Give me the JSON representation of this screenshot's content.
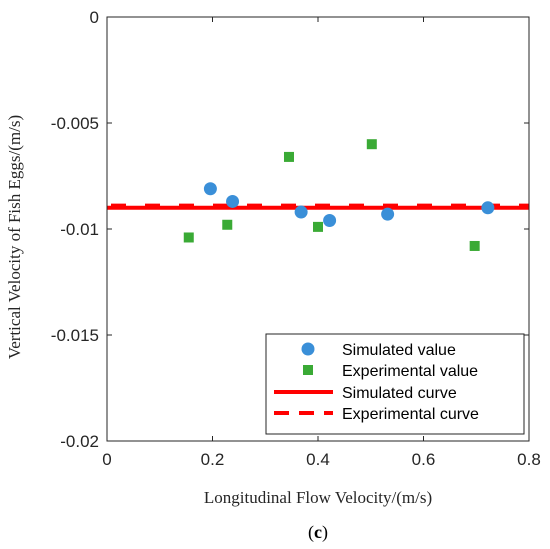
{
  "chart_data": {
    "type": "scatter",
    "xlabel": "Longitudinal Flow Velocity/(m/s)",
    "ylabel": "Vertical Velocity of Fish Eggs/(m/s)",
    "xlim": [
      0,
      0.8
    ],
    "ylim": [
      -0.02,
      0
    ],
    "xticks": [
      "0",
      "0.2",
      "0.4",
      "0.6",
      "0.8"
    ],
    "xtick_values": [
      0,
      0.2,
      0.4,
      0.6,
      0.8
    ],
    "yticks": [
      "0",
      "-0.005",
      "-0.01",
      "-0.015",
      "-0.02"
    ],
    "ytick_values": [
      0,
      -0.005,
      -0.01,
      -0.015,
      -0.02
    ],
    "grid": false,
    "legend_position": "bottom-right",
    "series": [
      {
        "name": "Simulated value",
        "kind": "scatter",
        "marker": "circle",
        "color": "#3a8fd8",
        "x": [
          0.196,
          0.238,
          0.368,
          0.422,
          0.532,
          0.722
        ],
        "y": [
          -0.0081,
          -0.0087,
          -0.0092,
          -0.0096,
          -0.0093,
          -0.009
        ]
      },
      {
        "name": "Experimental value",
        "kind": "scatter",
        "marker": "square",
        "color": "#3aaa35",
        "x": [
          0.155,
          0.228,
          0.345,
          0.4,
          0.502,
          0.697
        ],
        "y": [
          -0.0104,
          -0.0098,
          -0.0066,
          -0.0099,
          -0.006,
          -0.0108
        ]
      },
      {
        "name": "Simulated curve",
        "kind": "line",
        "style": "solid",
        "color": "#ff0000",
        "x": [
          0,
          0.8
        ],
        "y": [
          -0.009,
          -0.009
        ]
      },
      {
        "name": "Experimental curve",
        "kind": "line",
        "style": "dashed",
        "color": "#ff0000",
        "x": [
          0,
          0.8
        ],
        "y": [
          -0.0089,
          -0.0089
        ]
      }
    ]
  },
  "panel_label": {
    "open": "(",
    "letter": "c",
    "close": ")"
  }
}
